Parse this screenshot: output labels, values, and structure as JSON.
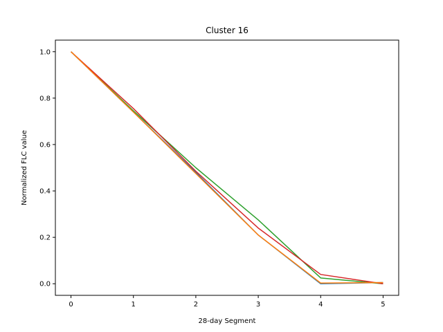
{
  "chart_data": {
    "type": "line",
    "title": "Cluster 16",
    "xlabel": "28-day Segment",
    "ylabel": "Normalized FLC value",
    "xlim": [
      -0.25,
      5.25
    ],
    "ylim": [
      -0.05,
      1.05
    ],
    "x": [
      0,
      1,
      2,
      3,
      4,
      5
    ],
    "xticks": [
      "0",
      "1",
      "2",
      "3",
      "4",
      "5"
    ],
    "yticks": [
      "0.0",
      "0.2",
      "0.4",
      "0.6",
      "0.8",
      "1.0"
    ],
    "grid": false,
    "legend": "none",
    "series": [
      {
        "color": "#1f77b4",
        "values": [
          1.0,
          0.74,
          0.48,
          0.21,
          0.0,
          0.005
        ]
      },
      {
        "color": "#2ca02c",
        "values": [
          1.0,
          0.745,
          0.5,
          0.275,
          0.025,
          0.0
        ]
      },
      {
        "color": "#d62728",
        "values": [
          1.0,
          0.755,
          0.485,
          0.24,
          0.04,
          0.0
        ]
      },
      {
        "color": "#ff7f0e",
        "values": [
          1.0,
          0.74,
          0.475,
          0.21,
          0.003,
          0.005
        ]
      }
    ]
  }
}
